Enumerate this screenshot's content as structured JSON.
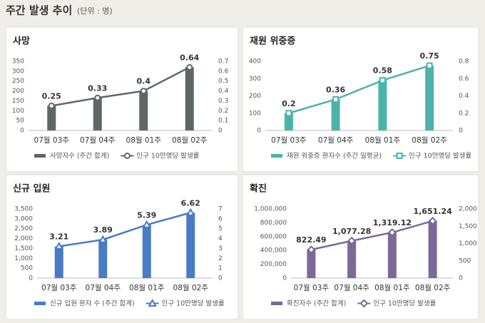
{
  "header": {
    "title": "주간 발생 추이",
    "unit": "(단위 : 명)"
  },
  "chart_data": [
    {
      "type": "combo",
      "title": "사망",
      "categories": [
        "07월 03주",
        "07월 04주",
        "08월 01주",
        "08월 02주"
      ],
      "series": [
        {
          "name": "사망자수 (주간 합계)",
          "color": "#5f6666",
          "type": "bar",
          "values": [
            125,
            165,
            200,
            320
          ]
        },
        {
          "name": "인구 10만명당 발생률",
          "color": "#5f6666",
          "type": "line",
          "marker": "circle",
          "axis": "y2",
          "values": [
            0.25,
            0.33,
            0.4,
            0.64
          ]
        }
      ],
      "ylim": [
        0,
        350
      ],
      "yticks": [
        0,
        50,
        100,
        150,
        200,
        250,
        300,
        350
      ],
      "y2lim": [
        0,
        0.7
      ],
      "y2ticks": [
        0,
        0.1,
        0.2,
        0.3,
        0.4,
        0.5,
        0.6,
        0.7
      ]
    },
    {
      "type": "combo",
      "title": "재원 위중증",
      "categories": [
        "07월 03주",
        "07월 04주",
        "08월 01주",
        "08월 02주"
      ],
      "series": [
        {
          "name": "재원 위중증 환자수 (주간 일평균)",
          "color": "#4cb3ab",
          "type": "bar",
          "values": [
            100,
            180,
            290,
            375
          ]
        },
        {
          "name": "인구 10만명당 발생률",
          "color": "#4cb3ab",
          "type": "line",
          "marker": "square",
          "axis": "y2",
          "values": [
            0.2,
            0.36,
            0.58,
            0.75
          ]
        }
      ],
      "ylim": [
        0,
        400
      ],
      "yticks": [
        0,
        100,
        200,
        300,
        400
      ],
      "y2lim": [
        0,
        0.8
      ],
      "y2ticks": [
        0,
        0.2,
        0.4,
        0.6,
        0.8
      ]
    },
    {
      "type": "combo",
      "title": "신규 입원",
      "categories": [
        "07월 03주",
        "07월 04주",
        "08월 01주",
        "08월 02주"
      ],
      "series": [
        {
          "name": "신규 입원 환자 수 (주간 합계)",
          "color": "#4a7cc4",
          "type": "bar",
          "values": [
            1605,
            1945,
            2695,
            3310
          ]
        },
        {
          "name": "인구 10만명당 발생률",
          "color": "#4a7cc4",
          "type": "line",
          "marker": "triangle",
          "axis": "y2",
          "values": [
            3.21,
            3.89,
            5.39,
            6.62
          ]
        }
      ],
      "ylim": [
        0,
        3500
      ],
      "yticks": [
        0,
        500,
        {
          "value": 1000,
          "label": "1,000"
        },
        {
          "value": 1500,
          "label": "1,500"
        },
        {
          "value": 2000,
          "label": "2,000"
        },
        {
          "value": 2500,
          "label": "2,500"
        },
        {
          "value": 3000,
          "label": "3,000"
        },
        {
          "value": 3500,
          "label": "3,500"
        }
      ],
      "y2lim": [
        0,
        7
      ],
      "y2ticks": [
        0,
        1,
        2,
        3,
        4,
        5,
        6,
        7
      ]
    },
    {
      "type": "combo",
      "title": "확진",
      "categories": [
        "07월 03주",
        "07월 04주",
        "08월 01주",
        "08월 02주"
      ],
      "series": [
        {
          "name": "확진자수 (주간 합계)",
          "color": "#7b6a98",
          "type": "bar",
          "values": [
            411000,
            539000,
            660000,
            826000
          ]
        },
        {
          "name": "인구 10만명당 발생률",
          "color": "#7b6a98",
          "type": "line",
          "marker": "diamond",
          "axis": "y2",
          "values": [
            822.49,
            1077.28,
            1319.12,
            1651.24
          ],
          "value_labels": [
            "822.49",
            "1,077.28",
            "1,319.12",
            "1,651.24"
          ]
        }
      ],
      "ylim": [
        0,
        1000000
      ],
      "yticks": [
        0,
        {
          "value": 200000,
          "label": "200,000"
        },
        {
          "value": 400000,
          "label": "400,000"
        },
        {
          "value": 600000,
          "label": "600,000"
        },
        {
          "value": 800000,
          "label": "800,000"
        },
        {
          "value": 1000000,
          "label": "1,000,000"
        }
      ],
      "y2lim": [
        0,
        2000
      ],
      "y2ticks": [
        0,
        500,
        {
          "value": 1000,
          "label": "1,000"
        },
        {
          "value": 1500,
          "label": "1,500"
        },
        {
          "value": 2000,
          "label": "2,000"
        }
      ]
    }
  ]
}
